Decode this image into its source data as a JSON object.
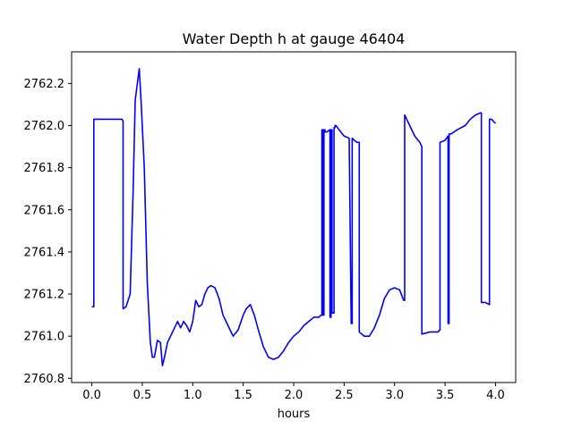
{
  "chart_data": {
    "type": "line",
    "title": "Water Depth h at gauge 46404",
    "xlabel": "hours",
    "ylabel": "",
    "xlim": [
      -0.2,
      4.2
    ],
    "ylim": [
      2760.78,
      2762.35
    ],
    "xticks": [
      0.0,
      0.5,
      1.0,
      1.5,
      2.0,
      2.5,
      3.0,
      3.5,
      4.0
    ],
    "xtick_labels": [
      "0.0",
      "0.5",
      "1.0",
      "1.5",
      "2.0",
      "2.5",
      "3.0",
      "3.5",
      "4.0"
    ],
    "yticks": [
      2760.8,
      2761.0,
      2761.2,
      2761.4,
      2761.6,
      2761.8,
      2762.0,
      2762.2
    ],
    "ytick_labels": [
      "2760.8",
      "2761.0",
      "2761.2",
      "2761.4",
      "2761.6",
      "2761.8",
      "2762.0",
      "2762.2"
    ],
    "grid": false,
    "series": [
      {
        "color": "#0000ff",
        "x": [
          0.0,
          0.02,
          0.02,
          0.1,
          0.2,
          0.3,
          0.31,
          0.31,
          0.34,
          0.38,
          0.41,
          0.43,
          0.47,
          0.49,
          0.52,
          0.55,
          0.58,
          0.6,
          0.62,
          0.65,
          0.68,
          0.7,
          0.72,
          0.75,
          0.8,
          0.85,
          0.88,
          0.91,
          0.94,
          0.97,
          1.0,
          1.03,
          1.06,
          1.09,
          1.12,
          1.15,
          1.18,
          1.22,
          1.26,
          1.3,
          1.35,
          1.4,
          1.45,
          1.5,
          1.53,
          1.57,
          1.61,
          1.65,
          1.7,
          1.75,
          1.8,
          1.85,
          1.9,
          1.95,
          2.0,
          2.05,
          2.1,
          2.15,
          2.2,
          2.25,
          2.27,
          2.28,
          2.28,
          2.29,
          2.29,
          2.3,
          2.3,
          2.31,
          2.31,
          2.33,
          2.36,
          2.36,
          2.37,
          2.37,
          2.38,
          2.38,
          2.4,
          2.4,
          2.41,
          2.41,
          2.42,
          2.42,
          2.45,
          2.5,
          2.55,
          2.57,
          2.57,
          2.58,
          2.58,
          2.6,
          2.63,
          2.65,
          2.65,
          2.7,
          2.75,
          2.8,
          2.85,
          2.9,
          2.95,
          3.0,
          3.05,
          3.09,
          3.1,
          3.1,
          3.15,
          3.2,
          3.25,
          3.27,
          3.27,
          3.35,
          3.43,
          3.45,
          3.45,
          3.5,
          3.53,
          3.53,
          3.54,
          3.54,
          3.56,
          3.62,
          3.7,
          3.75,
          3.8,
          3.85,
          3.86,
          3.86,
          3.9,
          3.94,
          3.94,
          3.96,
          3.98,
          4.0
        ],
        "y": [
          2761.14,
          2761.14,
          2762.03,
          2762.03,
          2762.03,
          2762.03,
          2762.02,
          2761.13,
          2761.14,
          2761.2,
          2761.7,
          2762.12,
          2762.27,
          2762.1,
          2761.8,
          2761.25,
          2760.97,
          2760.9,
          2760.9,
          2760.98,
          2760.97,
          2760.86,
          2760.9,
          2760.97,
          2761.02,
          2761.07,
          2761.04,
          2761.07,
          2761.05,
          2761.02,
          2761.07,
          2761.17,
          2761.14,
          2761.15,
          2761.2,
          2761.23,
          2761.24,
          2761.23,
          2761.18,
          2761.1,
          2761.05,
          2761.0,
          2761.03,
          2761.1,
          2761.13,
          2761.15,
          2761.1,
          2761.03,
          2760.95,
          2760.9,
          2760.89,
          2760.9,
          2760.93,
          2760.97,
          2761.0,
          2761.02,
          2761.05,
          2761.07,
          2761.09,
          2761.09,
          2761.1,
          2761.1,
          2761.98,
          2761.98,
          2761.1,
          2761.1,
          2761.98,
          2761.98,
          2761.97,
          2761.97,
          2761.98,
          2761.09,
          2761.09,
          2761.98,
          2761.98,
          2761.11,
          2761.11,
          2761.99,
          2761.99,
          2762.0,
          2762.0,
          2762.0,
          2761.98,
          2761.95,
          2761.94,
          2761.07,
          2761.06,
          2761.06,
          2761.94,
          2761.93,
          2761.92,
          2761.92,
          2761.02,
          2761.0,
          2761.0,
          2761.04,
          2761.1,
          2761.18,
          2761.22,
          2761.23,
          2761.22,
          2761.17,
          2761.17,
          2762.05,
          2762.0,
          2761.95,
          2761.92,
          2761.9,
          2761.01,
          2761.02,
          2761.02,
          2761.03,
          2761.92,
          2761.93,
          2761.95,
          2761.06,
          2761.06,
          2761.96,
          2761.96,
          2761.98,
          2762.0,
          2762.03,
          2762.05,
          2762.06,
          2762.06,
          2761.16,
          2761.16,
          2761.15,
          2762.03,
          2762.03,
          2762.02,
          2762.01
        ]
      }
    ]
  }
}
